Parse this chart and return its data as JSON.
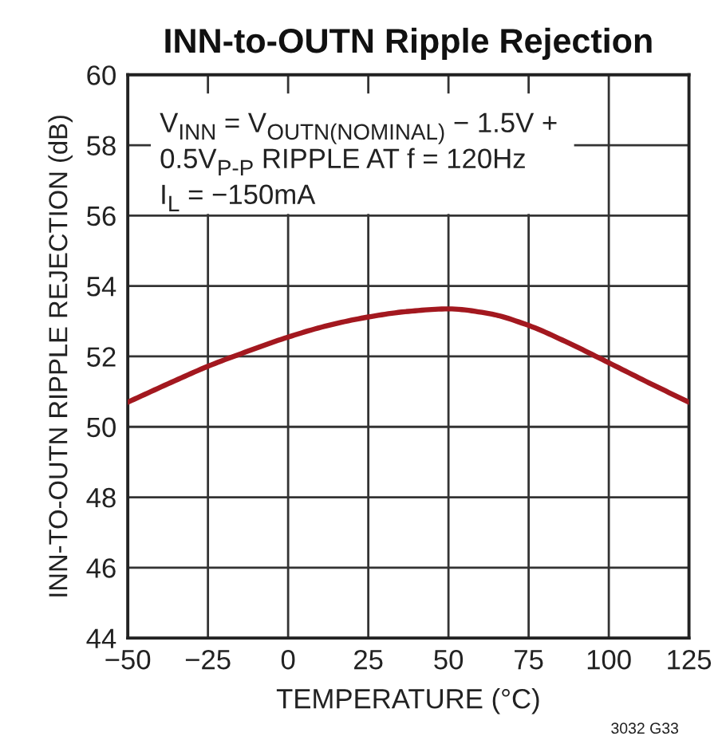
{
  "chart_data": {
    "type": "line",
    "title": "INN-to-OUTN Ripple Rejection",
    "xlabel": "TEMPERATURE (°C)",
    "ylabel": "INN-TO-OUTN RIPPLE REJECTION (dB)",
    "x": [
      -50,
      -37.5,
      -25,
      -12.5,
      0,
      12.5,
      25,
      37.5,
      50,
      62.5,
      75,
      87.5,
      100,
      112.5,
      125
    ],
    "series": [
      {
        "color": "#a3181f",
        "values": [
          50.7,
          51.22,
          51.72,
          52.15,
          52.55,
          52.88,
          53.12,
          53.28,
          53.35,
          53.22,
          52.88,
          52.38,
          51.82,
          51.25,
          50.7
        ]
      }
    ],
    "xlim": [
      -50,
      125
    ],
    "xticks": [
      {
        "value": -50,
        "label": "−50"
      },
      {
        "value": -25,
        "label": "−25"
      },
      0,
      25,
      50,
      75,
      100,
      125
    ],
    "ylim": [
      44,
      60
    ],
    "yticks": [
      44,
      46,
      48,
      50,
      52,
      54,
      56,
      58,
      60
    ],
    "grid": true,
    "marker": "none",
    "line_style": "solid",
    "legend": false,
    "annotations": [
      "V$_{INN}$ = V$_{OUTN(NOMINAL)}$ − 1.5V +\n0.5V$_{P-P}$ RIPPLE AT f = 120Hz\nI$_{L}$ = −150mA",
      "3032 G33"
    ]
  }
}
